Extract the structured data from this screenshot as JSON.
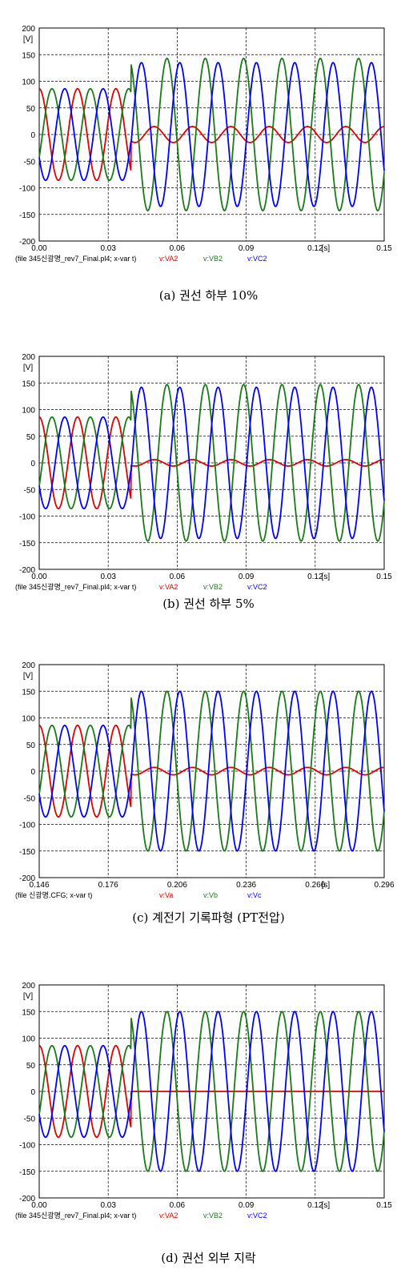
{
  "colors": {
    "phase_a": "#e00000",
    "phase_b": "#1a7a1a",
    "phase_c": "#0000ff"
  },
  "chart_data": [
    {
      "type": "line",
      "caption": "(a) 권선 하부 10%",
      "ylabel": "[V]",
      "xunit": "[s]",
      "xlim": [
        0,
        0.15
      ],
      "ylim": [
        -200,
        200
      ],
      "yticks": [
        200,
        150,
        100,
        50,
        0,
        -50,
        -100,
        -150,
        -200
      ],
      "xticks": [
        "0.00",
        "0.03",
        "0.06",
        "0.09",
        "0.12",
        "0.15"
      ],
      "grid": true,
      "footer_file": "(file 345신광명_rev7_Final.pl4; x-var t)",
      "fault_time": 0.04,
      "freq_hz": 60,
      "series": [
        {
          "name": "v:VA2",
          "pre_amplitude": 86,
          "post_amplitude": 15,
          "phase_deg": 90
        },
        {
          "name": "v:VB2",
          "pre_amplitude": 86,
          "post_amplitude": 143,
          "phase_deg": -30
        },
        {
          "name": "v:VC2",
          "pre_amplitude": 86,
          "post_amplitude": 135,
          "phase_deg": 210
        }
      ]
    },
    {
      "type": "line",
      "caption": "(b) 권선 하부 5%",
      "ylabel": "[V]",
      "xunit": "[s]",
      "xlim": [
        0,
        0.15
      ],
      "ylim": [
        -200,
        200
      ],
      "yticks": [
        200,
        150,
        100,
        50,
        0,
        -50,
        -100,
        -150,
        -200
      ],
      "xticks": [
        "0.00",
        "0.03",
        "0.06",
        "0.09",
        "0.12",
        "0.15"
      ],
      "grid": true,
      "footer_file": "(file 345신광명_rev7_Final.pl4; x-var t)",
      "fault_time": 0.04,
      "freq_hz": 60,
      "series": [
        {
          "name": "v:VA2",
          "pre_amplitude": 86,
          "post_amplitude": 6,
          "phase_deg": 90
        },
        {
          "name": "v:VB2",
          "pre_amplitude": 86,
          "post_amplitude": 147,
          "phase_deg": -30
        },
        {
          "name": "v:VC2",
          "pre_amplitude": 86,
          "post_amplitude": 142,
          "phase_deg": 210
        }
      ]
    },
    {
      "type": "line",
      "caption": "(c) 계전기 기록파형 (PT전압)",
      "ylabel": "[V]",
      "xunit": "[s]",
      "xlim": [
        0.146,
        0.296
      ],
      "ylim": [
        -200,
        200
      ],
      "yticks": [
        200,
        150,
        100,
        50,
        0,
        -50,
        -100,
        -150,
        -200
      ],
      "xticks": [
        "0.146",
        "0.176",
        "0.206",
        "0.236",
        "0.266",
        "0.296"
      ],
      "grid": true,
      "footer_file": "(file 신광명.CFG; x-var t)",
      "fault_time": 0.186,
      "freq_hz": 60,
      "series": [
        {
          "name": "v:Va",
          "pre_amplitude": 86,
          "post_amplitude": 7,
          "phase_deg": 90
        },
        {
          "name": "v:Vb",
          "pre_amplitude": 86,
          "post_amplitude": 150,
          "phase_deg": -30
        },
        {
          "name": "v:Vc",
          "pre_amplitude": 86,
          "post_amplitude": 150,
          "phase_deg": 210
        }
      ]
    },
    {
      "type": "line",
      "caption": "(d) 권선 외부 지락",
      "ylabel": "[V]",
      "xunit": "[s]",
      "xlim": [
        0,
        0.15
      ],
      "ylim": [
        -200,
        200
      ],
      "yticks": [
        200,
        150,
        100,
        50,
        0,
        -50,
        -100,
        -150,
        -200
      ],
      "xticks": [
        "0.00",
        "0.03",
        "0.06",
        "0.09",
        "0.12",
        "0.15"
      ],
      "grid": true,
      "footer_file": "(file 345신광명_rev7_Final.pl4; x-var t)",
      "fault_time": 0.04,
      "freq_hz": 60,
      "series": [
        {
          "name": "v:VA2",
          "pre_amplitude": 86,
          "post_amplitude": 0,
          "phase_deg": 90
        },
        {
          "name": "v:VB2",
          "pre_amplitude": 86,
          "post_amplitude": 150,
          "phase_deg": -30
        },
        {
          "name": "v:VC2",
          "pre_amplitude": 86,
          "post_amplitude": 150,
          "phase_deg": 210
        }
      ]
    }
  ]
}
